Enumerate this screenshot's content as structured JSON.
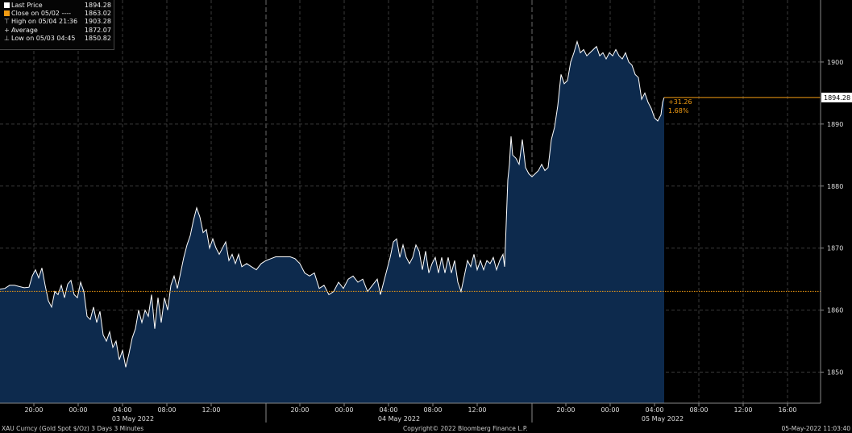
{
  "legend": [
    {
      "label": "Last Price",
      "value": "1894.28",
      "symbol": "square-white-icon",
      "color": "#ffffff"
    },
    {
      "label": "Close on 05/02 ----",
      "value": "1863.02",
      "symbol": "square-orange-icon",
      "color": "#f39c12"
    },
    {
      "label": "High on 05/04 21:36",
      "value": "1903.28",
      "symbol": "high-marker-icon"
    },
    {
      "label": "Average",
      "value": "1872.07",
      "symbol": "average-marker-icon"
    },
    {
      "label": "Low on 05/03 04:45",
      "value": "1850.82",
      "symbol": "low-marker-icon"
    }
  ],
  "footer": {
    "left": "XAU Curncy (Gold Spot  $/Oz) 3 Days 3 Minutes",
    "center": "Copyright© 2022 Bloomberg Finance L.P.",
    "right": "05-May-2022 11:03:40"
  },
  "chart_data": {
    "type": "area",
    "ylim": [
      1845,
      1910
    ],
    "y_ticks": [
      1850,
      1860,
      1870,
      1880,
      1890,
      1900
    ],
    "last_price": "1894.28",
    "last_price_value": 1894.28,
    "close_value": 1863.02,
    "change": "+31.26",
    "change_pct": "1.68%",
    "x_tick_labels": [
      "20:00",
      "00:00",
      "04:00",
      "08:00",
      "12:00",
      "20:00",
      "00:00",
      "04:00",
      "08:00",
      "12:00",
      "20:00",
      "00:00",
      "04:00",
      "08:00",
      "12:00",
      "16:00"
    ],
    "date_labels": [
      "03 May 2022",
      "04 May 2022",
      "05 May 2022"
    ],
    "colors": {
      "line": "#ffffff",
      "fill": "#0d2a4d",
      "close": "#f39c12",
      "grid": "#3a3a3a"
    },
    "series": [
      {
        "x": [
          0,
          6,
          12,
          18,
          24,
          30,
          36,
          40,
          44,
          48,
          52,
          56,
          60,
          64,
          68,
          72,
          76,
          80,
          84,
          88,
          92,
          96,
          100,
          104,
          108,
          112,
          116,
          120,
          124,
          128,
          132,
          136,
          140,
          144,
          148,
          152,
          156,
          160,
          164,
          168,
          172,
          176,
          180,
          184,
          188,
          192,
          196,
          200,
          204,
          208,
          212,
          216,
          220,
          224,
          228,
          232,
          236,
          240,
          244,
          248,
          252,
          256,
          260,
          264,
          268,
          272,
          276,
          280,
          284,
          288,
          292,
          296,
          300,
          306,
          312,
          318,
          324,
          330,
          336,
          342,
          348,
          354,
          360,
          366,
          372,
          378,
          384,
          390,
          396,
          402,
          408,
          414,
          420,
          426,
          432,
          438,
          444,
          450,
          456,
          462,
          468,
          472,
          476,
          480,
          484,
          488,
          492,
          496,
          500,
          504,
          508,
          512,
          516,
          520,
          524,
          528,
          532,
          536,
          540,
          544,
          548,
          552,
          556,
          560,
          564,
          568,
          572,
          576,
          580,
          584,
          588,
          592,
          596,
          600,
          604,
          608,
          612,
          616,
          620,
          624,
          626,
          628,
          630,
          632,
          634,
          636,
          640,
          644,
          648,
          652,
          656,
          660,
          664,
          668,
          672,
          676,
          680,
          684,
          688,
          692,
          696,
          700,
          704,
          708,
          712,
          716,
          720,
          724,
          728,
          732,
          736,
          740,
          744,
          748,
          752,
          756,
          760,
          764,
          768,
          772,
          776,
          780,
          784,
          788,
          792,
          796,
          800,
          804,
          808,
          812,
          816,
          820,
          822,
          824
        ],
        "y": [
          1863.4,
          1863.5,
          1864.0,
          1864.0,
          1863.8,
          1863.6,
          1863.7,
          1865.5,
          1866.5,
          1865.2,
          1866.8,
          1864.0,
          1861.5,
          1860.5,
          1863.0,
          1862.5,
          1864.0,
          1862.0,
          1864.2,
          1864.8,
          1862.5,
          1862.0,
          1864.5,
          1863.0,
          1859.0,
          1858.5,
          1860.5,
          1858.0,
          1859.8,
          1856.0,
          1855.0,
          1856.5,
          1854.0,
          1855.0,
          1852.0,
          1853.5,
          1850.8,
          1853.0,
          1855.5,
          1857.0,
          1860.0,
          1858.0,
          1860.0,
          1859.0,
          1862.5,
          1857.0,
          1862.0,
          1858.0,
          1862.0,
          1860.0,
          1864.0,
          1865.5,
          1863.5,
          1866.0,
          1868.5,
          1870.5,
          1872.0,
          1874.5,
          1876.5,
          1875.0,
          1872.5,
          1873.0,
          1870.0,
          1871.5,
          1870.0,
          1869.0,
          1870.0,
          1871.0,
          1868.0,
          1869.0,
          1867.5,
          1869.0,
          1867.0,
          1867.5,
          1867.0,
          1866.5,
          1867.5,
          1868.0,
          1868.3,
          1868.6,
          1868.6,
          1868.6,
          1868.6,
          1868.3,
          1867.5,
          1866.0,
          1865.5,
          1866.0,
          1863.5,
          1864.0,
          1862.5,
          1863.0,
          1864.5,
          1863.5,
          1865.0,
          1865.5,
          1864.5,
          1865.0,
          1863.0,
          1864.0,
          1865.0,
          1862.5,
          1864.5,
          1866.5,
          1868.5,
          1871.0,
          1871.5,
          1868.5,
          1870.5,
          1868.5,
          1867.5,
          1868.5,
          1870.5,
          1869.5,
          1866.5,
          1869.5,
          1866.0,
          1867.5,
          1868.5,
          1866.0,
          1868.5,
          1866.0,
          1868.5,
          1866.0,
          1868.0,
          1864.5,
          1863.0,
          1865.5,
          1868.0,
          1867.0,
          1869.0,
          1866.5,
          1868.0,
          1866.5,
          1868.0,
          1867.5,
          1868.5,
          1866.5,
          1868.0,
          1869.0,
          1867.0,
          1874.0,
          1881.0,
          1883.5,
          1888.0,
          1885.0,
          1884.5,
          1883.5,
          1887.5,
          1883.0,
          1882.0,
          1881.5,
          1882.0,
          1882.5,
          1883.5,
          1882.5,
          1883.0,
          1887.5,
          1889.5,
          1893.0,
          1898.0,
          1896.5,
          1897.0,
          1900.0,
          1901.5,
          1903.3,
          1901.5,
          1902.0,
          1901.0,
          1901.5,
          1902.0,
          1902.5,
          1901.0,
          1901.5,
          1900.5,
          1901.5,
          1901.0,
          1902.0,
          1901.0,
          1900.5,
          1901.5,
          1900.0,
          1899.5,
          1898.0,
          1897.5,
          1894.0,
          1895.0,
          1893.5,
          1892.5,
          1891.0,
          1890.5,
          1891.5,
          1893.5,
          1894.28
        ]
      }
    ]
  }
}
